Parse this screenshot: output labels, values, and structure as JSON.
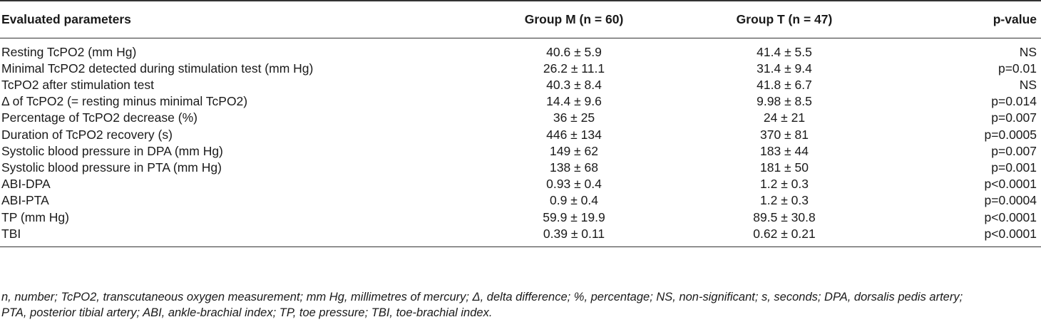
{
  "table": {
    "headers": {
      "param": "Evaluated parameters",
      "group_m": "Group M (n = 60)",
      "group_t": "Group T (n = 47)",
      "pvalue": "p-value"
    },
    "rows": [
      {
        "param": "Resting TcPO2 (mm Hg)",
        "group_m": "40.6 ± 5.9",
        "group_t": "41.4 ± 5.5",
        "pvalue": "NS"
      },
      {
        "param": "Minimal TcPO2 detected during stimulation test (mm Hg)",
        "group_m": "26.2 ± 11.1",
        "group_t": "31.4 ± 9.4",
        "pvalue": "p=0.01"
      },
      {
        "param": "TcPO2 after stimulation test",
        "group_m": "40.3 ± 8.4",
        "group_t": "41.8 ± 6.7",
        "pvalue": "NS"
      },
      {
        "param": "Δ of TcPO2 (= resting minus minimal TcPO2)",
        "group_m": "14.4 ± 9.6",
        "group_t": "9.98 ± 8.5",
        "pvalue": "p=0.014"
      },
      {
        "param": "Percentage of TcPO2 decrease (%)",
        "group_m": "36 ± 25",
        "group_t": "24 ± 21",
        "pvalue": "p=0.007"
      },
      {
        "param": "Duration of TcPO2 recovery (s)",
        "group_m": "446 ± 134",
        "group_t": "370 ± 81",
        "pvalue": "p=0.0005"
      },
      {
        "param": "Systolic blood pressure in DPA (mm Hg)",
        "group_m": "149 ± 62",
        "group_t": "183 ± 44",
        "pvalue": "p=0.007"
      },
      {
        "param": "Systolic blood pressure in PTA (mm Hg)",
        "group_m": "138 ± 68",
        "group_t": "181 ± 50",
        "pvalue": "p=0.001"
      },
      {
        "param": "ABI-DPA",
        "group_m": "0.93 ± 0.4",
        "group_t": "1.2 ± 0.3",
        "pvalue": "p<0.0001"
      },
      {
        "param": "ABI-PTA",
        "group_m": "0.9 ± 0.4",
        "group_t": "1.2 ± 0.3",
        "pvalue": "p=0.0004"
      },
      {
        "param": "TP (mm Hg)",
        "group_m": "59.9 ± 19.9",
        "group_t": "89.5 ± 30.8",
        "pvalue": "p<0.0001"
      },
      {
        "param": "TBI",
        "group_m": "0.39 ± 0.11",
        "group_t": "0.62 ± 0.21",
        "pvalue": "p<0.0001"
      }
    ]
  },
  "footnote": {
    "line1": "n, number; TcPO2, transcutaneous oxygen measurement; mm Hg, millimetres of mercury; Δ, delta difference; %, percentage; NS, non-significant; s, seconds; DPA, dorsalis pedis artery;",
    "line2": "PTA, posterior tibial artery; ABI, ankle-brachial index; TP, toe pressure; TBI, toe-brachial index."
  }
}
